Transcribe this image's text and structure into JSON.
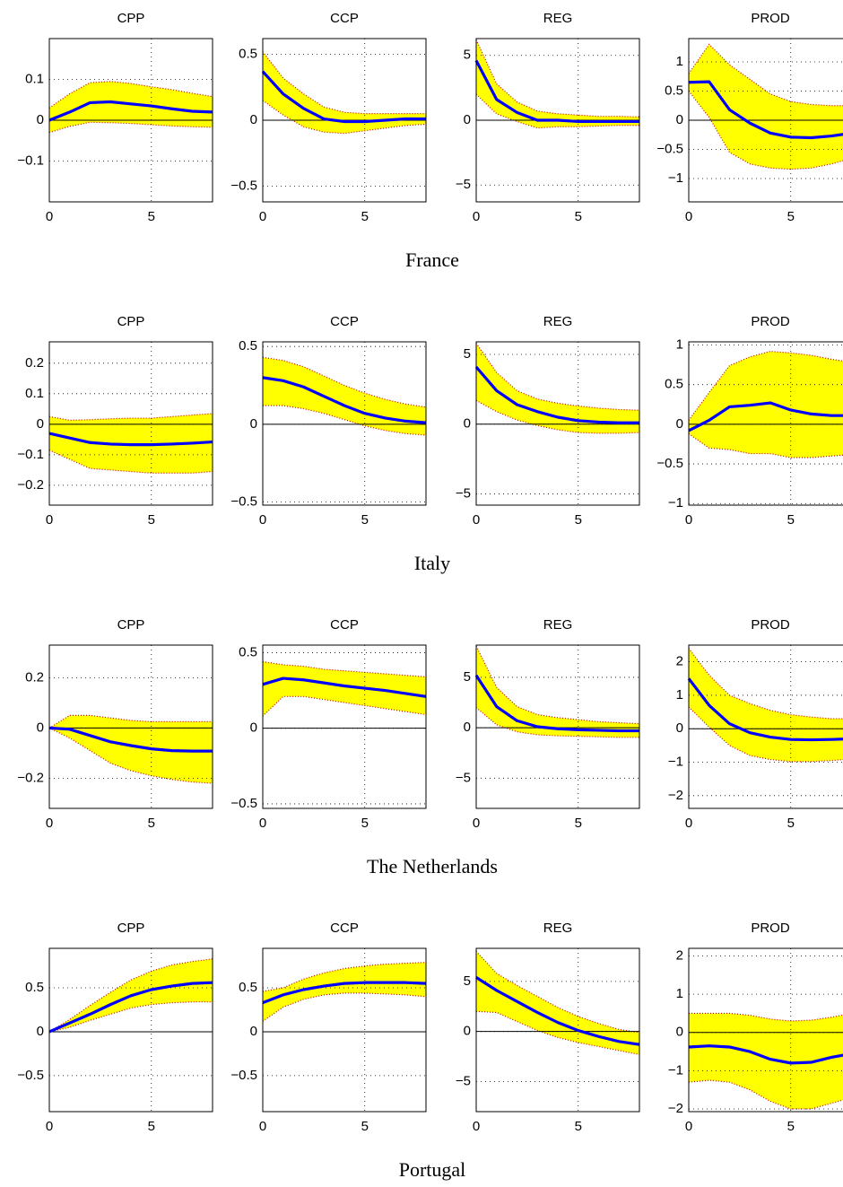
{
  "captions": [
    "France",
    "Italy",
    "The Netherlands",
    "Portugal"
  ],
  "chart_data": [
    {
      "type": "band-line",
      "title": "CPP",
      "x": [
        0,
        1,
        2,
        3,
        4,
        5,
        6,
        7,
        8
      ],
      "xlim": [
        0,
        8
      ],
      "xticks": [
        0,
        5
      ],
      "ylim": [
        -0.2,
        0.2
      ],
      "yticks": [
        {
          "value": -0.1,
          "label": "−0.1"
        },
        0,
        0.1
      ],
      "grid": true,
      "color": "#0000ff",
      "band_color": "#ffff00",
      "edge_color": "#cc0000",
      "values": [
        0,
        0.02,
        0.043,
        0.045,
        0.04,
        0.035,
        0.028,
        0.022,
        0.02
      ],
      "upper": [
        0.03,
        0.065,
        0.092,
        0.095,
        0.09,
        0.082,
        0.075,
        0.066,
        0.058
      ],
      "lower": [
        -0.03,
        -0.015,
        -0.005,
        -0.006,
        -0.008,
        -0.011,
        -0.014,
        -0.016,
        -0.017
      ]
    },
    {
      "type": "band-line",
      "title": "CCP",
      "x": [
        0,
        1,
        2,
        3,
        4,
        5,
        6,
        7,
        8
      ],
      "xlim": [
        0,
        8
      ],
      "xticks": [
        0,
        5
      ],
      "ylim": [
        -0.62,
        0.62
      ],
      "yticks": [
        {
          "value": -0.5,
          "label": "−0.5"
        },
        0,
        0.5
      ],
      "grid": true,
      "color": "#0000ff",
      "band_color": "#ffff00",
      "edge_color": "#cc0000",
      "values": [
        0.37,
        0.2,
        0.09,
        0.01,
        -0.01,
        -0.01,
        0,
        0.01,
        0.01
      ],
      "upper": [
        0.52,
        0.32,
        0.2,
        0.1,
        0.06,
        0.05,
        0.05,
        0.05,
        0.05
      ],
      "lower": [
        0.15,
        0.04,
        -0.05,
        -0.09,
        -0.1,
        -0.08,
        -0.06,
        -0.04,
        -0.03
      ]
    },
    {
      "type": "band-line",
      "title": "REG",
      "x": [
        0,
        1,
        2,
        3,
        4,
        5,
        6,
        7,
        8
      ],
      "xlim": [
        0,
        8
      ],
      "xticks": [
        0,
        5
      ],
      "ylim": [
        -6.3,
        6.3
      ],
      "yticks": [
        {
          "value": -5,
          "label": "−5"
        },
        0,
        5
      ],
      "grid": true,
      "color": "#0000ff",
      "band_color": "#ffff00",
      "edge_color": "#cc0000",
      "values": [
        4.6,
        1.6,
        0.6,
        0,
        0,
        -0.1,
        -0.1,
        -0.1,
        -0.1
      ],
      "upper": [
        6.2,
        2.8,
        1.4,
        0.7,
        0.5,
        0.4,
        0.3,
        0.3,
        0.25
      ],
      "lower": [
        2.0,
        0.5,
        -0.1,
        -0.6,
        -0.5,
        -0.5,
        -0.45,
        -0.4,
        -0.4
      ]
    },
    {
      "type": "band-line",
      "title": "PROD",
      "x": [
        0,
        1,
        2,
        3,
        4,
        5,
        6,
        7,
        8
      ],
      "xlim": [
        0,
        8
      ],
      "xticks": [
        0,
        5
      ],
      "ylim": [
        -1.4,
        1.4
      ],
      "yticks": [
        {
          "value": -1,
          "label": "−1"
        },
        {
          "value": -0.5,
          "label": "−0.5"
        },
        0,
        0.5,
        1
      ],
      "grid": true,
      "color": "#0000ff",
      "band_color": "#ffff00",
      "edge_color": "#cc0000",
      "values": [
        0.65,
        0.66,
        0.18,
        -0.05,
        -0.22,
        -0.29,
        -0.3,
        -0.27,
        -0.22
      ],
      "upper": [
        0.8,
        1.3,
        0.95,
        0.7,
        0.45,
        0.32,
        0.27,
        0.25,
        0.25
      ],
      "lower": [
        0.5,
        0.05,
        -0.55,
        -0.75,
        -0.82,
        -0.84,
        -0.82,
        -0.75,
        -0.65
      ]
    },
    {
      "type": "band-line",
      "title": "CPP",
      "x": [
        0,
        1,
        2,
        3,
        4,
        5,
        6,
        7,
        8
      ],
      "xlim": [
        0,
        8
      ],
      "xticks": [
        0,
        5
      ],
      "ylim": [
        -0.265,
        0.27
      ],
      "yticks": [
        {
          "value": -0.2,
          "label": "−0.2"
        },
        {
          "value": -0.1,
          "label": "−0.1"
        },
        0,
        0.1,
        0.2
      ],
      "grid": true,
      "color": "#0000ff",
      "band_color": "#ffff00",
      "edge_color": "#cc0000",
      "values": [
        -0.03,
        -0.045,
        -0.06,
        -0.065,
        -0.067,
        -0.067,
        -0.065,
        -0.062,
        -0.058
      ],
      "upper": [
        0.025,
        0.013,
        0.015,
        0.018,
        0.02,
        0.02,
        0.025,
        0.03,
        0.035
      ],
      "lower": [
        -0.085,
        -0.115,
        -0.145,
        -0.15,
        -0.155,
        -0.16,
        -0.16,
        -0.16,
        -0.155
      ]
    },
    {
      "type": "band-line",
      "title": "CCP",
      "x": [
        0,
        1,
        2,
        3,
        4,
        5,
        6,
        7,
        8
      ],
      "xlim": [
        0,
        8
      ],
      "xticks": [
        0,
        5
      ],
      "ylim": [
        -0.52,
        0.53
      ],
      "yticks": [
        {
          "value": -0.5,
          "label": "−0.5"
        },
        0,
        0.5
      ],
      "grid": true,
      "color": "#0000ff",
      "band_color": "#ffff00",
      "edge_color": "#cc0000",
      "values": [
        0.3,
        0.28,
        0.24,
        0.18,
        0.12,
        0.07,
        0.04,
        0.02,
        0.01
      ],
      "upper": [
        0.43,
        0.41,
        0.37,
        0.31,
        0.25,
        0.2,
        0.16,
        0.13,
        0.11
      ],
      "lower": [
        0.12,
        0.12,
        0.1,
        0.07,
        0.03,
        -0.01,
        -0.04,
        -0.06,
        -0.07
      ]
    },
    {
      "type": "band-line",
      "title": "REG",
      "x": [
        0,
        1,
        2,
        3,
        4,
        5,
        6,
        7,
        8
      ],
      "xlim": [
        0,
        8
      ],
      "xticks": [
        0,
        5
      ],
      "ylim": [
        -5.8,
        5.9
      ],
      "yticks": [
        {
          "value": -5,
          "label": "−5"
        },
        0,
        5
      ],
      "grid": true,
      "color": "#0000ff",
      "band_color": "#ffff00",
      "edge_color": "#cc0000",
      "values": [
        4.1,
        2.4,
        1.4,
        0.9,
        0.5,
        0.25,
        0.15,
        0.1,
        0.1
      ],
      "upper": [
        5.8,
        3.7,
        2.4,
        1.8,
        1.5,
        1.3,
        1.15,
        1.05,
        1.0
      ],
      "lower": [
        1.7,
        0.9,
        0.3,
        -0.1,
        -0.4,
        -0.6,
        -0.65,
        -0.65,
        -0.6
      ]
    },
    {
      "type": "band-line",
      "title": "PROD",
      "x": [
        0,
        1,
        2,
        3,
        4,
        5,
        6,
        7,
        8
      ],
      "xlim": [
        0,
        8
      ],
      "xticks": [
        0,
        5
      ],
      "ylim": [
        -1.02,
        1.04
      ],
      "yticks": [
        {
          "value": -1,
          "label": "−1"
        },
        {
          "value": -0.5,
          "label": "−0.5"
        },
        0,
        0.5,
        1
      ],
      "grid": true,
      "color": "#0000ff",
      "band_color": "#ffff00",
      "edge_color": "#cc0000",
      "values": [
        -0.08,
        0.05,
        0.22,
        0.24,
        0.27,
        0.18,
        0.13,
        0.11,
        0.11
      ],
      "upper": [
        0.05,
        0.4,
        0.74,
        0.85,
        0.92,
        0.9,
        0.87,
        0.82,
        0.78
      ],
      "lower": [
        -0.12,
        -0.3,
        -0.32,
        -0.37,
        -0.37,
        -0.42,
        -0.42,
        -0.4,
        -0.38
      ]
    },
    {
      "type": "band-line",
      "title": "CPP",
      "x": [
        0,
        1,
        2,
        3,
        4,
        5,
        6,
        7,
        8
      ],
      "xlim": [
        0,
        8
      ],
      "xticks": [
        0,
        5
      ],
      "ylim": [
        -0.32,
        0.33
      ],
      "yticks": [
        {
          "value": -0.2,
          "label": "−0.2"
        },
        0,
        0.2
      ],
      "grid": true,
      "color": "#0000ff",
      "band_color": "#ffff00",
      "edge_color": "#cc0000",
      "values": [
        0,
        -0.005,
        -0.03,
        -0.055,
        -0.07,
        -0.083,
        -0.09,
        -0.092,
        -0.092
      ],
      "upper": [
        0,
        0.05,
        0.05,
        0.04,
        0.03,
        0.025,
        0.025,
        0.025,
        0.025
      ],
      "lower": [
        0,
        -0.04,
        -0.09,
        -0.14,
        -0.17,
        -0.19,
        -0.205,
        -0.215,
        -0.22
      ]
    },
    {
      "type": "band-line",
      "title": "CCP",
      "x": [
        0,
        1,
        2,
        3,
        4,
        5,
        6,
        7,
        8
      ],
      "xlim": [
        0,
        8
      ],
      "xticks": [
        0,
        5
      ],
      "ylim": [
        -0.53,
        0.55
      ],
      "yticks": [
        {
          "value": -0.5,
          "label": "−0.5"
        },
        0,
        0.5
      ],
      "grid": true,
      "color": "#0000ff",
      "band_color": "#ffff00",
      "edge_color": "#cc0000",
      "values": [
        0.29,
        0.33,
        0.32,
        0.3,
        0.28,
        0.265,
        0.25,
        0.23,
        0.21
      ],
      "upper": [
        0.44,
        0.42,
        0.41,
        0.39,
        0.38,
        0.37,
        0.36,
        0.35,
        0.34
      ],
      "lower": [
        0.08,
        0.21,
        0.21,
        0.19,
        0.17,
        0.15,
        0.13,
        0.11,
        0.09
      ]
    },
    {
      "type": "band-line",
      "title": "REG",
      "x": [
        0,
        1,
        2,
        3,
        4,
        5,
        6,
        7,
        8
      ],
      "xlim": [
        0,
        8
      ],
      "xticks": [
        0,
        5
      ],
      "ylim": [
        -8.0,
        8.2
      ],
      "yticks": [
        {
          "value": -5,
          "label": "−5"
        },
        0,
        5
      ],
      "grid": true,
      "color": "#0000ff",
      "band_color": "#ffff00",
      "edge_color": "#cc0000",
      "values": [
        5.2,
        2.1,
        0.7,
        0.1,
        -0.1,
        -0.2,
        -0.25,
        -0.3,
        -0.3
      ],
      "upper": [
        8.1,
        4.0,
        2.1,
        1.3,
        1.0,
        0.8,
        0.6,
        0.5,
        0.4
      ],
      "lower": [
        2.0,
        0.3,
        -0.4,
        -0.7,
        -0.8,
        -0.85,
        -0.9,
        -0.95,
        -0.95
      ]
    },
    {
      "type": "band-line",
      "title": "PROD",
      "x": [
        0,
        1,
        2,
        3,
        4,
        5,
        6,
        7,
        8
      ],
      "xlim": [
        0,
        8
      ],
      "xticks": [
        0,
        5
      ],
      "ylim": [
        -2.38,
        2.5
      ],
      "yticks": [
        {
          "value": -2,
          "label": "−2"
        },
        {
          "value": -1,
          "label": "−1"
        },
        0,
        1,
        2
      ],
      "grid": true,
      "color": "#0000ff",
      "band_color": "#ffff00",
      "edge_color": "#cc0000",
      "values": [
        1.5,
        0.7,
        0.15,
        -0.12,
        -0.25,
        -0.32,
        -0.33,
        -0.32,
        -0.3
      ],
      "upper": [
        2.4,
        1.6,
        1.0,
        0.75,
        0.55,
        0.42,
        0.35,
        0.3,
        0.3
      ],
      "lower": [
        0.65,
        0.05,
        -0.5,
        -0.8,
        -0.92,
        -0.98,
        -0.98,
        -0.95,
        -0.9
      ]
    },
    {
      "type": "band-line",
      "title": "CPP",
      "x": [
        0,
        1,
        2,
        3,
        4,
        5,
        6,
        7,
        8
      ],
      "xlim": [
        0,
        8
      ],
      "xticks": [
        0,
        5
      ],
      "ylim": [
        -0.91,
        0.95
      ],
      "yticks": [
        {
          "value": -0.5,
          "label": "−0.5"
        },
        0,
        0.5
      ],
      "grid": true,
      "color": "#0000ff",
      "band_color": "#ffff00",
      "edge_color": "#cc0000",
      "values": [
        0,
        0.1,
        0.2,
        0.31,
        0.41,
        0.48,
        0.52,
        0.55,
        0.56
      ],
      "upper": [
        0,
        0.14,
        0.3,
        0.45,
        0.59,
        0.69,
        0.76,
        0.8,
        0.83
      ],
      "lower": [
        0,
        0.05,
        0.13,
        0.2,
        0.27,
        0.31,
        0.33,
        0.34,
        0.34
      ]
    },
    {
      "type": "band-line",
      "title": "CCP",
      "x": [
        0,
        1,
        2,
        3,
        4,
        5,
        6,
        7,
        8
      ],
      "xlim": [
        0,
        8
      ],
      "xticks": [
        0,
        5
      ],
      "ylim": [
        -0.91,
        0.95
      ],
      "yticks": [
        {
          "value": -0.5,
          "label": "−0.5"
        },
        0,
        0.5
      ],
      "grid": true,
      "color": "#0000ff",
      "band_color": "#ffff00",
      "edge_color": "#cc0000",
      "values": [
        0.33,
        0.42,
        0.48,
        0.52,
        0.55,
        0.56,
        0.56,
        0.56,
        0.55
      ],
      "upper": [
        0.46,
        0.5,
        0.6,
        0.67,
        0.72,
        0.75,
        0.77,
        0.78,
        0.79
      ],
      "lower": [
        0.12,
        0.28,
        0.37,
        0.42,
        0.44,
        0.44,
        0.43,
        0.42,
        0.4
      ]
    },
    {
      "type": "band-line",
      "title": "REG",
      "x": [
        0,
        1,
        2,
        3,
        4,
        5,
        6,
        7,
        8
      ],
      "xlim": [
        0,
        8
      ],
      "xticks": [
        0,
        5
      ],
      "ylim": [
        -8.0,
        8.3
      ],
      "yticks": [
        {
          "value": -5,
          "label": "−5"
        },
        0,
        5
      ],
      "grid": true,
      "color": "#0000ff",
      "band_color": "#ffff00",
      "edge_color": "#cc0000",
      "values": [
        5.4,
        4.1,
        3.0,
        1.9,
        0.9,
        0.1,
        -0.5,
        -1.0,
        -1.3
      ],
      "upper": [
        8.0,
        5.8,
        4.6,
        3.5,
        2.4,
        1.5,
        0.8,
        0.2,
        -0.1
      ],
      "lower": [
        2.0,
        1.9,
        1.0,
        0.1,
        -0.6,
        -1.1,
        -1.5,
        -1.9,
        -2.3
      ]
    },
    {
      "type": "band-line",
      "title": "PROD",
      "x": [
        0,
        1,
        2,
        3,
        4,
        5,
        6,
        7,
        8
      ],
      "xlim": [
        0,
        8
      ],
      "xticks": [
        0,
        5
      ],
      "ylim": [
        -2.07,
        2.2
      ],
      "yticks": [
        {
          "value": -2,
          "label": "−2"
        },
        {
          "value": -1,
          "label": "−1"
        },
        0,
        1,
        2
      ],
      "grid": true,
      "color": "#0000ff",
      "band_color": "#ffff00",
      "edge_color": "#cc0000",
      "values": [
        -0.38,
        -0.35,
        -0.38,
        -0.5,
        -0.7,
        -0.8,
        -0.78,
        -0.65,
        -0.55
      ],
      "upper": [
        0.5,
        0.5,
        0.5,
        0.45,
        0.35,
        0.3,
        0.32,
        0.4,
        0.5
      ],
      "lower": [
        -1.3,
        -1.25,
        -1.3,
        -1.5,
        -1.8,
        -2.0,
        -2.0,
        -1.85,
        -1.7
      ]
    }
  ]
}
